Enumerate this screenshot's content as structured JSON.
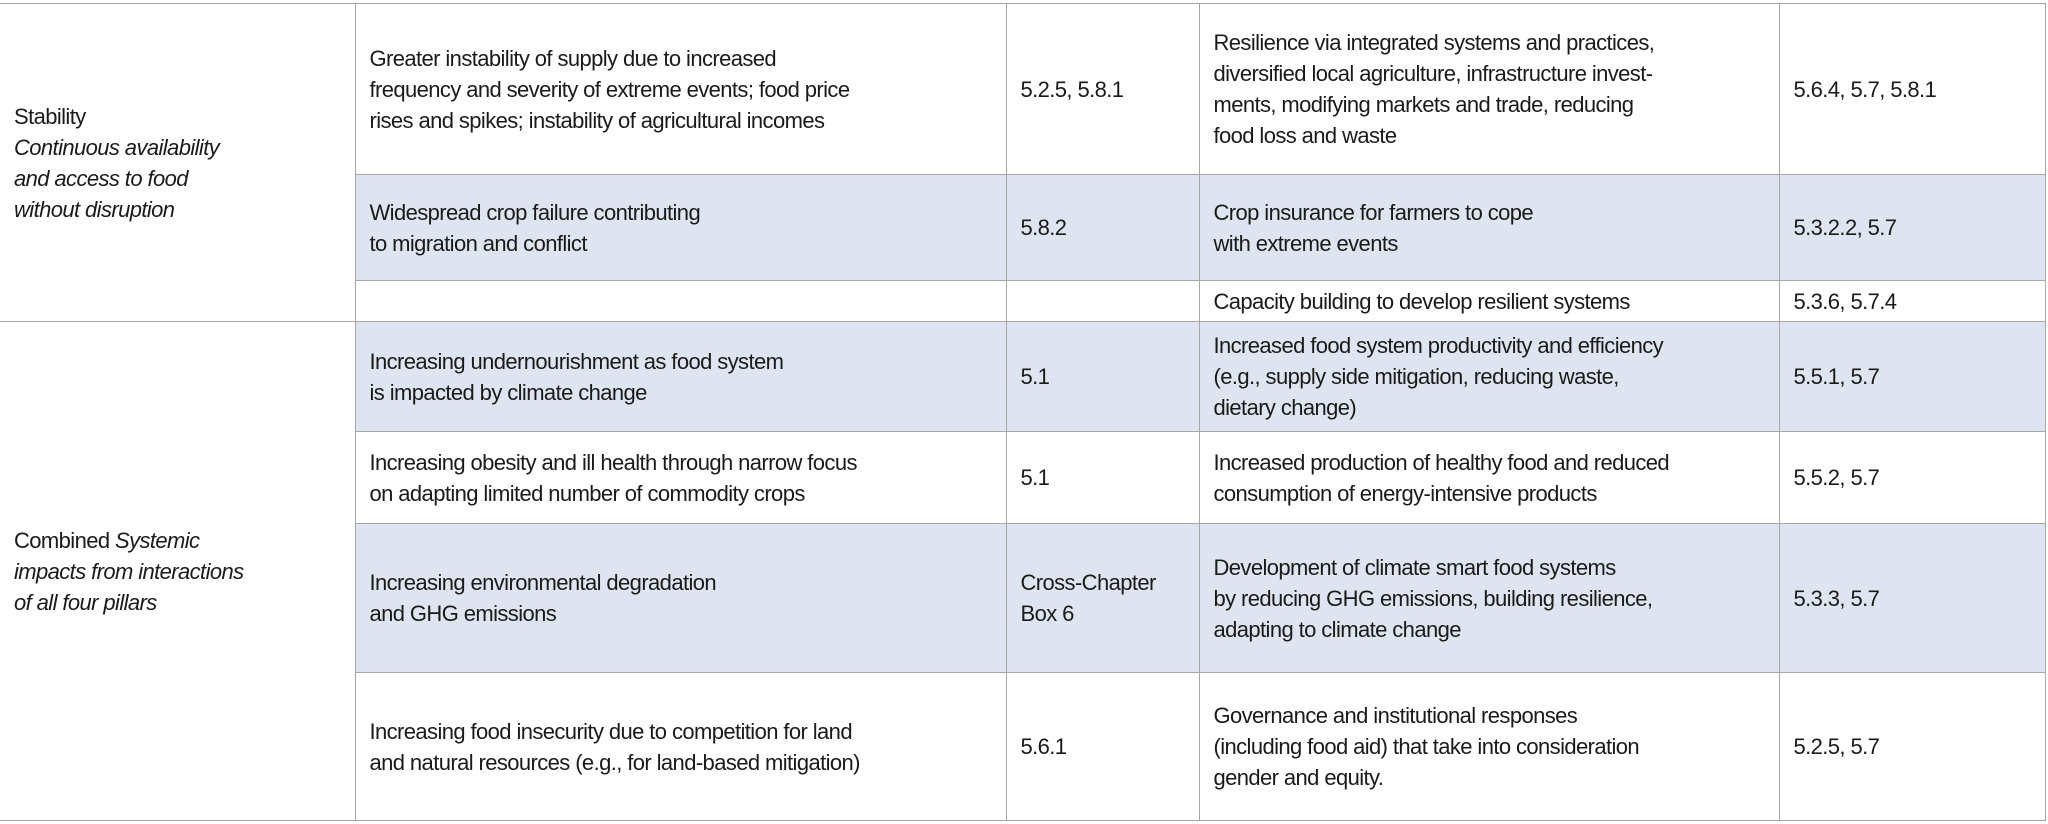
{
  "pillars": [
    {
      "name": "Stability",
      "description": "Continuous availability\nand access to food\nwithout disruption"
    },
    {
      "name_prefix": "Combined ",
      "description": "Systemic\nimpacts from interactions\nof all four pillars"
    }
  ],
  "rows": [
    {
      "risk": "Greater instability of supply due to increased\nfrequency and severity of extreme events; food price\nrises and spikes; instability of agricultural incomes",
      "risk_ref": "5.2.5, 5.8.1",
      "response": "Resilience via integrated systems and practices,\ndiversified local agriculture, infrastructure invest-\nments, modifying markets and trade, reducing\nfood loss and waste",
      "response_ref": "5.6.4, 5.7, 5.8.1"
    },
    {
      "risk": "Widespread crop failure contributing\nto migration and conflict",
      "risk_ref": "5.8.2",
      "response": "Crop insurance for farmers to cope\nwith extreme events",
      "response_ref": "5.3.2.2, 5.7"
    },
    {
      "risk": "",
      "risk_ref": "",
      "response": "Capacity building to develop resilient systems",
      "response_ref": "5.3.6, 5.7.4"
    },
    {
      "risk": "Increasing undernourishment as food system\nis impacted by climate change",
      "risk_ref": "5.1",
      "response": "Increased food system productivity and efficiency\n(e.g., supply side mitigation, reducing waste,\ndietary change)",
      "response_ref": "5.5.1, 5.7"
    },
    {
      "risk": "Increasing obesity and ill health through narrow focus\non adapting limited number of commodity crops",
      "risk_ref": "5.1",
      "response": "Increased production of healthy food and reduced\nconsumption of energy-intensive products",
      "response_ref": "5.5.2, 5.7"
    },
    {
      "risk": "Increasing environmental degradation\nand GHG emissions",
      "risk_ref": "Cross-Chapter\nBox 6",
      "response": "Development of climate smart food systems\nby reducing GHG emissions, building resilience,\nadapting to climate change",
      "response_ref": "5.3.3, 5.7"
    },
    {
      "risk": "Increasing food insecurity due to competition for land\nand natural resources (e.g., for land-based mitigation)",
      "risk_ref": "5.6.1",
      "response": "Governance and institutional responses\n(including food aid) that take into consideration\ngender and equity.",
      "response_ref": "5.2.5, 5.7"
    }
  ],
  "colors": {
    "shade": "#dfe5f0",
    "border": "#a7a7a7"
  }
}
